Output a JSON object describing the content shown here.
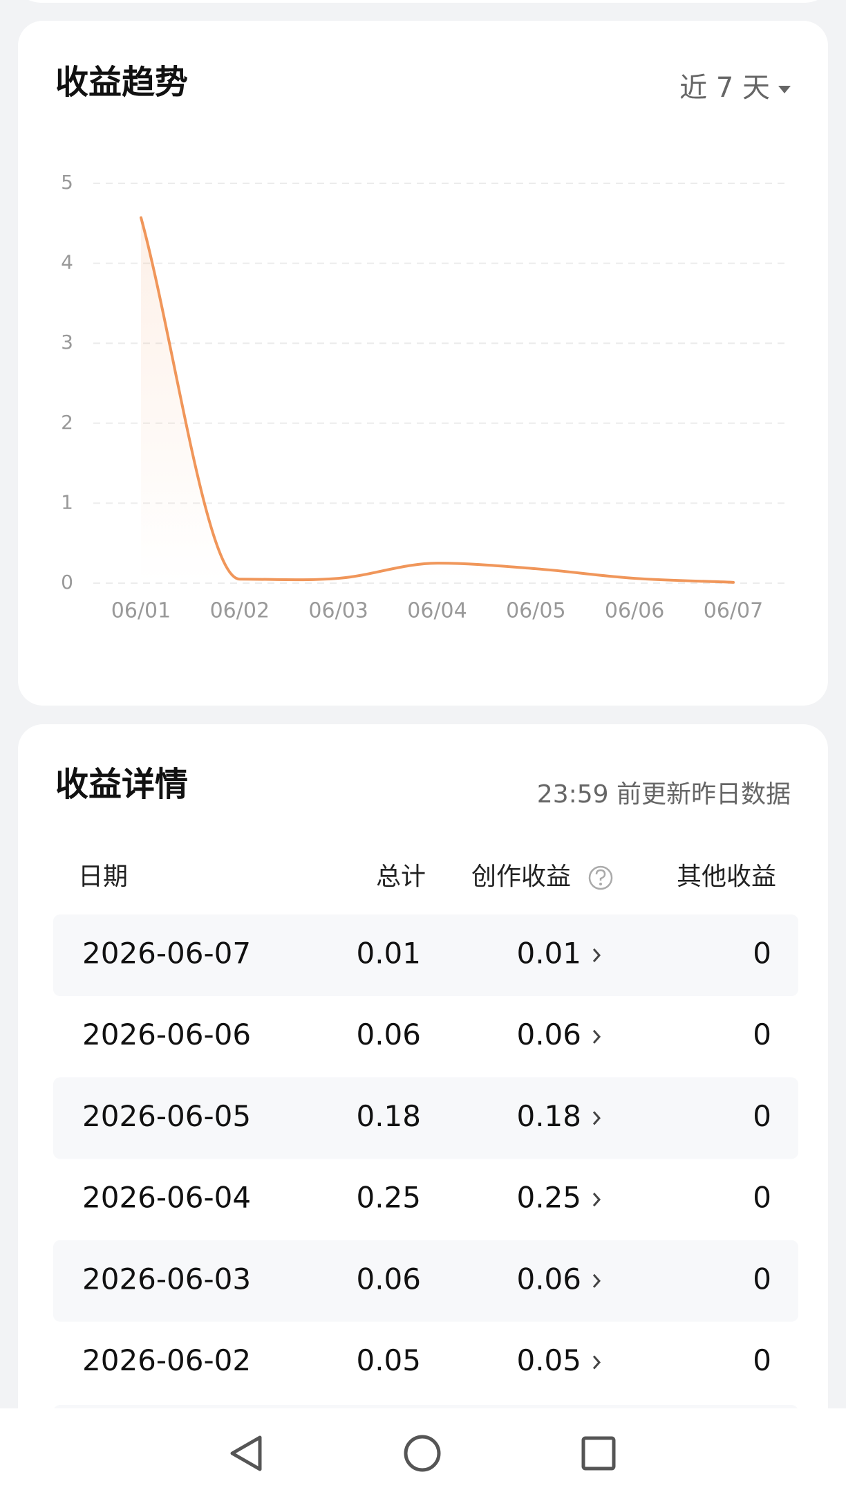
{
  "trend": {
    "title": "收益趋势",
    "range_selector": "近 7 天"
  },
  "chart_data": {
    "type": "line",
    "categories": [
      "06/01",
      "06/02",
      "06/03",
      "06/04",
      "06/05",
      "06/06",
      "06/07"
    ],
    "series": [
      {
        "name": "收益",
        "color": "#f0965a",
        "values": [
          4.57,
          0.05,
          0.06,
          0.25,
          0.18,
          0.06,
          0.01
        ]
      }
    ],
    "ylim": [
      0,
      5
    ],
    "yticks": [
      0,
      1,
      2,
      3,
      4,
      5
    ],
    "grid": true
  },
  "details": {
    "title": "收益详情",
    "update_note": "23:59 前更新昨日数据",
    "columns": [
      "日期",
      "总计",
      "创作收益",
      "其他收益"
    ],
    "rows": [
      [
        "2026-06-07",
        "0.01",
        "0.01",
        "0"
      ],
      [
        "2026-06-06",
        "0.06",
        "0.06",
        "0"
      ],
      [
        "2026-06-05",
        "0.18",
        "0.18",
        "0"
      ],
      [
        "2026-06-04",
        "0.25",
        "0.25",
        "0"
      ],
      [
        "2026-06-03",
        "0.06",
        "0.06",
        "0"
      ],
      [
        "2026-06-02",
        "0.05",
        "0.05",
        "0"
      ]
    ]
  }
}
